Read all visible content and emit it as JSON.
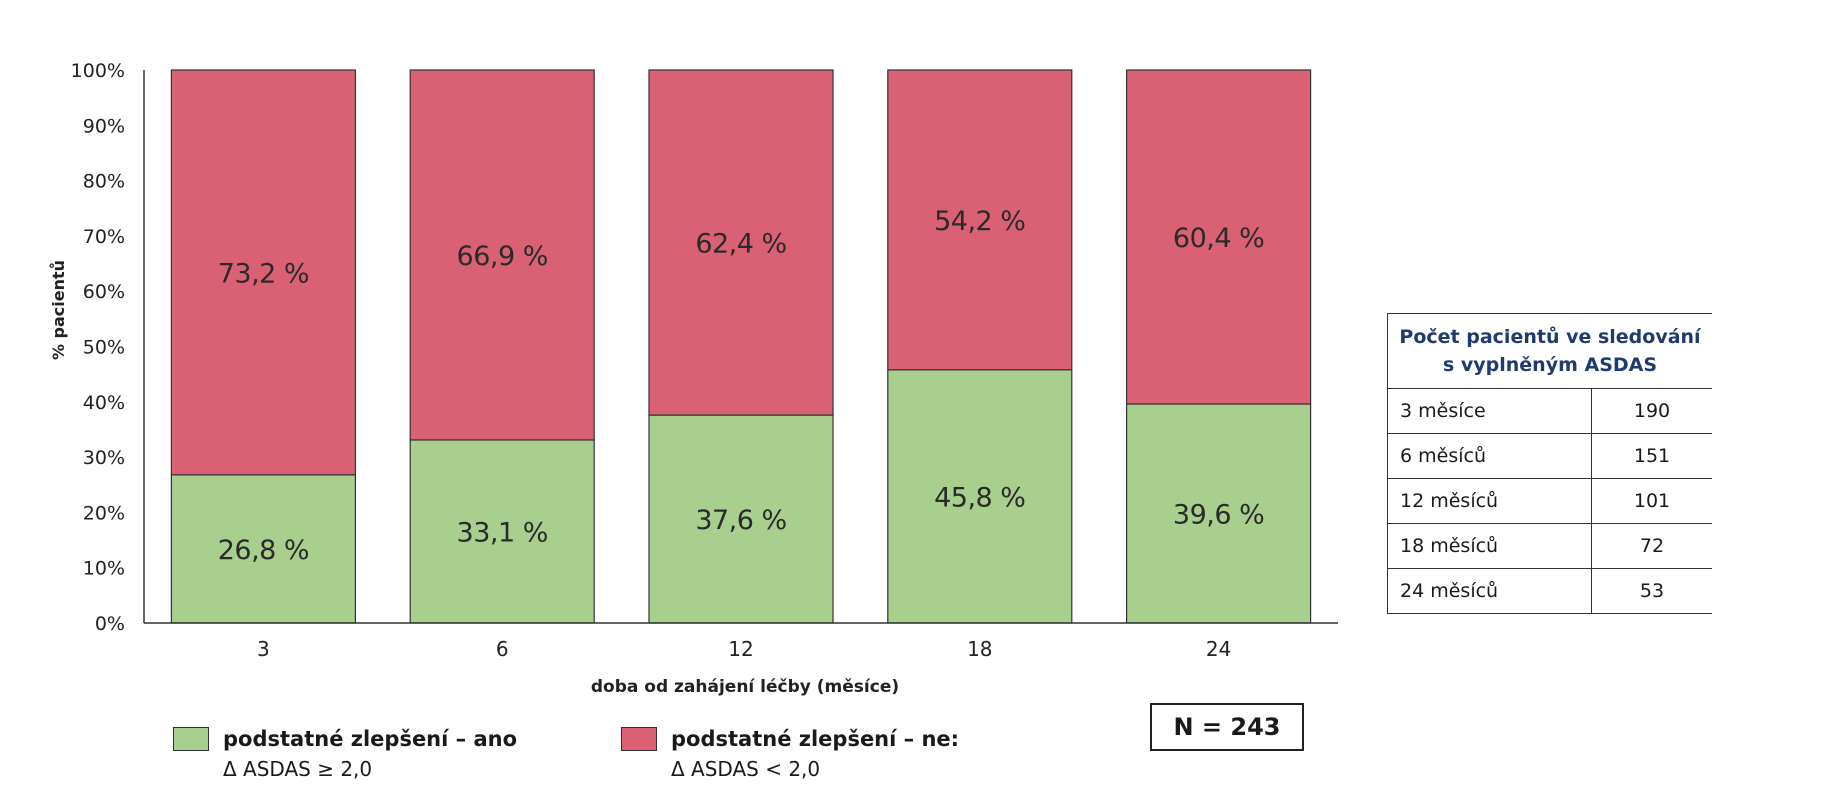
{
  "chart_data": {
    "type": "bar",
    "stacked": true,
    "categories": [
      "3",
      "6",
      "12",
      "18",
      "24"
    ],
    "series": [
      {
        "name": "podstatné zlepšení – ano",
        "values": [
          26.8,
          33.1,
          37.6,
          45.8,
          39.6
        ],
        "labels": [
          "26,8 %",
          "33,1 %",
          "37,6 %",
          "45,8 %",
          "39,6 %"
        ],
        "color": "#a8cf8e"
      },
      {
        "name": "podstatné zlepšení – ne:",
        "values": [
          73.2,
          66.9,
          62.4,
          54.2,
          60.4
        ],
        "labels": [
          "73,2 %",
          "66,9 %",
          "62,4 %",
          "54,2 %",
          "60,4 %"
        ],
        "color": "#da6173"
      }
    ],
    "xlabel": "doba od zahájení léčby (měsíce)",
    "ylabel": "% pacientů",
    "ylim": [
      0,
      100
    ],
    "yticks": [
      "0%",
      "10%",
      "20%",
      "30%",
      "40%",
      "50%",
      "60%",
      "70%",
      "80%",
      "90%",
      "100%"
    ],
    "grid": false,
    "legend_position": "bottom"
  },
  "legend": [
    {
      "title": "podstatné zlepšení – ano",
      "subtitle": "Δ ASDAS ≥ 2,0",
      "color": "#a8cf8e"
    },
    {
      "title": "podstatné zlepšení – ne:",
      "subtitle": "Δ ASDAS < 2,0",
      "color": "#da6173"
    }
  ],
  "n_label": "N = 243",
  "table": {
    "header_line1": "Počet pacientů ve sledování",
    "header_line2": "s vyplněným ASDAS",
    "rows": [
      {
        "label": "3 měsíce",
        "value": "190"
      },
      {
        "label": "6 měsíců",
        "value": "151"
      },
      {
        "label": "12 měsíců",
        "value": "101"
      },
      {
        "label": "18 měsíců",
        "value": "72"
      },
      {
        "label": "24 měsíců",
        "value": "53"
      }
    ]
  }
}
